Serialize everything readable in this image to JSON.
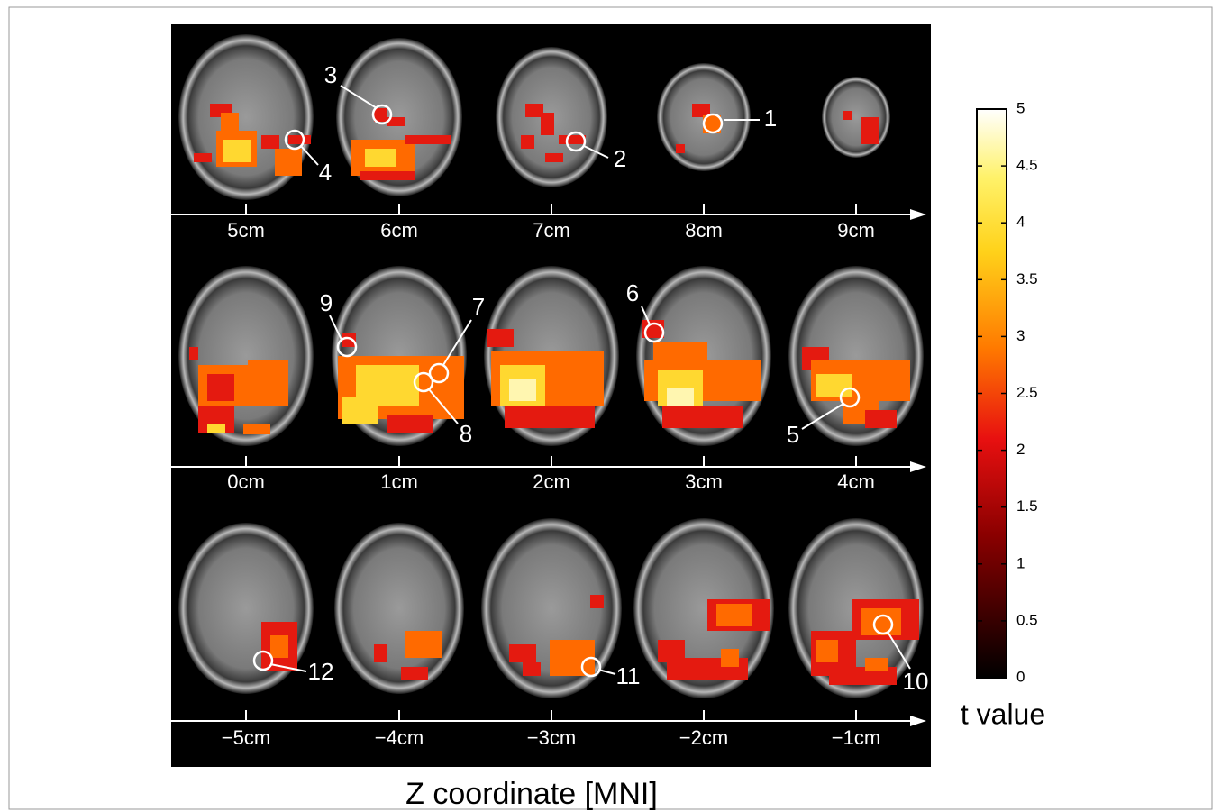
{
  "figure": {
    "slice_rows": [
      [
        "5cm",
        "6cm",
        "7cm",
        "8cm",
        "9cm"
      ],
      [
        "0cm",
        "1cm",
        "2cm",
        "3cm",
        "4cm"
      ],
      [
        "−5cm",
        "−4cm",
        "−3cm",
        "−2cm",
        "−1cm"
      ]
    ],
    "regions": [
      "1",
      "2",
      "3",
      "4",
      "5",
      "6",
      "7",
      "8",
      "9",
      "10",
      "11",
      "12"
    ],
    "x_title": "Z coordinate [MNI]",
    "colorbar": {
      "label": "t value",
      "lim": [
        0,
        5
      ],
      "ticks": [
        0,
        0.5,
        1,
        1.5,
        2,
        2.5,
        3,
        3.5,
        4,
        4.5,
        5
      ]
    }
  }
}
